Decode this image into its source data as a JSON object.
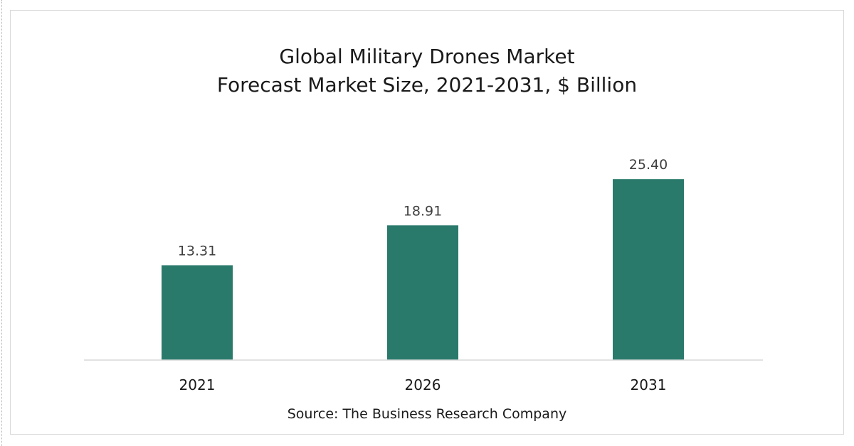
{
  "chart_data": {
    "type": "bar",
    "title": "Global Military Drones Market",
    "subtitle": "Forecast Market Size, 2021-2031, $ Billion",
    "categories": [
      "2021",
      "2026",
      "2031"
    ],
    "values": [
      13.31,
      18.91,
      25.4
    ],
    "value_labels": [
      "13.31",
      "18.91",
      "25.40"
    ],
    "ylim": [
      0,
      31
    ],
    "bar_color": "#2a7a6c",
    "grid": false,
    "legend": "none",
    "source": "Source: The Business Research Company"
  }
}
